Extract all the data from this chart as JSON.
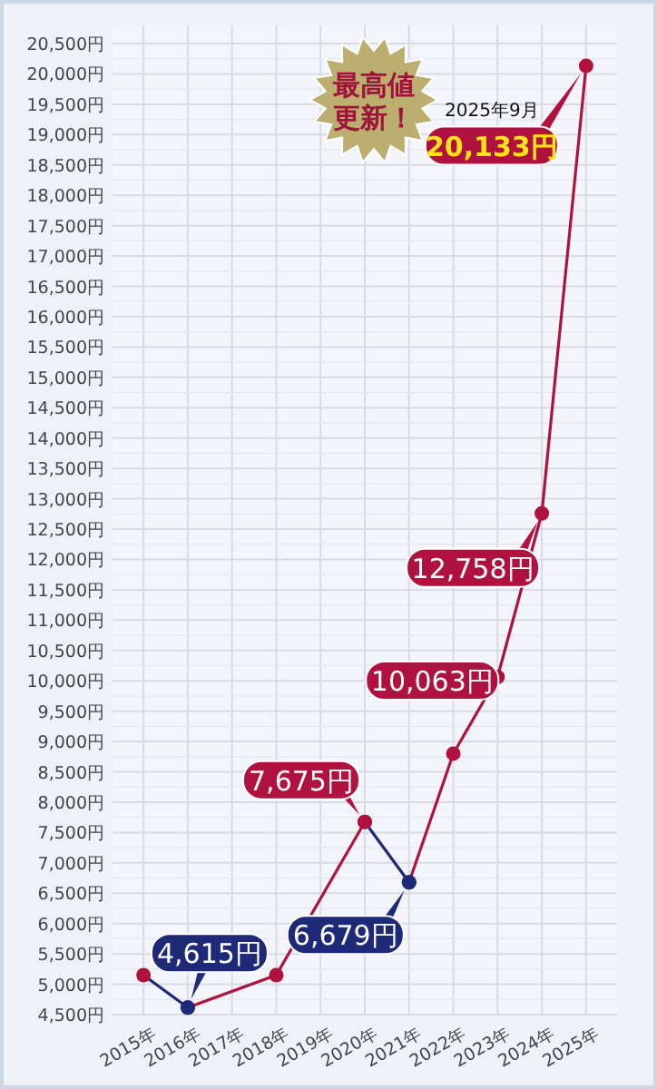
{
  "chart_data": {
    "type": "line",
    "xlim": [
      2014.3,
      2025.7
    ],
    "xticks": [
      {
        "value": 2015,
        "label": "2015年"
      },
      {
        "value": 2016,
        "label": "2016年"
      },
      {
        "value": 2017,
        "label": "2017年"
      },
      {
        "value": 2018,
        "label": "2018年"
      },
      {
        "value": 2019,
        "label": "2019年"
      },
      {
        "value": 2020,
        "label": "2020年"
      },
      {
        "value": 2021,
        "label": "2021年"
      },
      {
        "value": 2022,
        "label": "2022年"
      },
      {
        "value": 2023,
        "label": "2023年"
      },
      {
        "value": 2024,
        "label": "2024年"
      },
      {
        "value": 2025,
        "label": "2025年"
      }
    ],
    "ylim": [
      4500,
      20500
    ],
    "yticks": [
      {
        "value": 4500,
        "label": "4,500円"
      },
      {
        "value": 5000,
        "label": "5,000円"
      },
      {
        "value": 5500,
        "label": "5,500円"
      },
      {
        "value": 6000,
        "label": "6,000円"
      },
      {
        "value": 6500,
        "label": "6,500円"
      },
      {
        "value": 7000,
        "label": "7,000円"
      },
      {
        "value": 7500,
        "label": "7,500円"
      },
      {
        "value": 8000,
        "label": "8,000円"
      },
      {
        "value": 8500,
        "label": "8,500円"
      },
      {
        "value": 9000,
        "label": "9,000円"
      },
      {
        "value": 9500,
        "label": "9,500円"
      },
      {
        "value": 10000,
        "label": "10,000円"
      },
      {
        "value": 10500,
        "label": "10,500円"
      },
      {
        "value": 11000,
        "label": "11,000円"
      },
      {
        "value": 11500,
        "label": "11,500円"
      },
      {
        "value": 12000,
        "label": "12,000円"
      },
      {
        "value": 12500,
        "label": "12,500円"
      },
      {
        "value": 13000,
        "label": "13,000円"
      },
      {
        "value": 13500,
        "label": "13,500円"
      },
      {
        "value": 14000,
        "label": "14,000円"
      },
      {
        "value": 14500,
        "label": "14,500円"
      },
      {
        "value": 15000,
        "label": "15,000円"
      },
      {
        "value": 15500,
        "label": "15,500円"
      },
      {
        "value": 16000,
        "label": "16,000円"
      },
      {
        "value": 16500,
        "label": "16,500円"
      },
      {
        "value": 17000,
        "label": "17,000円"
      },
      {
        "value": 17500,
        "label": "17,500円"
      },
      {
        "value": 18000,
        "label": "18,000円"
      },
      {
        "value": 18500,
        "label": "18,500円"
      },
      {
        "value": 19000,
        "label": "19,000円"
      },
      {
        "value": 19500,
        "label": "19,500円"
      },
      {
        "value": 20000,
        "label": "20,000円"
      },
      {
        "value": 20500,
        "label": "20,500円"
      }
    ],
    "series": [
      {
        "x": [
          2015,
          2016
        ],
        "values": [
          5150,
          4615
        ],
        "color": "#1e2a78",
        "colors": [
          "#b0123f",
          "#1e2a78"
        ],
        "value_labels": [
          null,
          "4,615円"
        ]
      },
      {
        "x": [
          2016,
          2018,
          2020
        ],
        "values": [
          4615,
          5150,
          7675
        ],
        "color": "#b0123f",
        "colors": [
          "#1e2a78",
          "#b0123f",
          "#b0123f"
        ],
        "value_labels": [
          null,
          null,
          "7,675円"
        ]
      },
      {
        "x": [
          2020,
          2021
        ],
        "values": [
          7675,
          6679
        ],
        "color": "#1e2a78",
        "colors": [
          "#b0123f",
          "#1e2a78"
        ],
        "value_labels": [
          null,
          "6,679円"
        ]
      },
      {
        "x": [
          2021,
          2022,
          2023,
          2024,
          2025
        ],
        "values": [
          6679,
          8800,
          10063,
          12758,
          20133
        ],
        "color": "#b0123f",
        "colors": [
          "#1e2a78",
          "#b0123f",
          "#b0123f",
          "#b0123f",
          "#b0123f"
        ],
        "value_labels": [
          null,
          null,
          "10,063円",
          "12,758円",
          "20,133円"
        ]
      }
    ],
    "marker": "circle",
    "line_style": "solid",
    "grid": true,
    "annotations": [
      "最高値更新！",
      "2025年9月"
    ]
  }
}
